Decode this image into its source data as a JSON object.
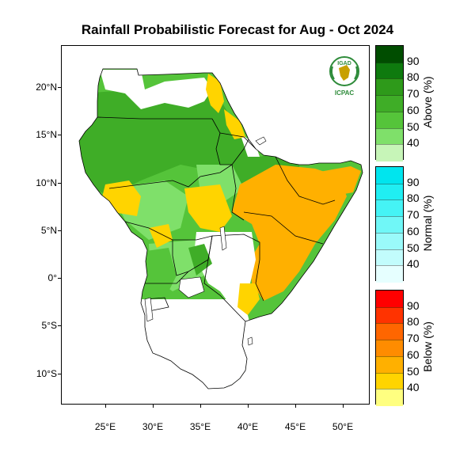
{
  "title": "Rainfall Probabilistic Forecast for Aug - Oct 2024",
  "logo": {
    "top_text": "IGAD",
    "bottom_text": "ICPAC"
  },
  "y_ticks": [
    {
      "label": "20°N",
      "lat": 20
    },
    {
      "label": "15°N",
      "lat": 15
    },
    {
      "label": "10°N",
      "lat": 10
    },
    {
      "label": "5°N",
      "lat": 5
    },
    {
      "label": "0°",
      "lat": 0
    },
    {
      "label": "5°S",
      "lat": -5
    },
    {
      "label": "10°S",
      "lat": -10
    }
  ],
  "x_ticks": [
    {
      "label": "25°E",
      "lon": 25
    },
    {
      "label": "30°E",
      "lon": 30
    },
    {
      "label": "35°E",
      "lon": 35
    },
    {
      "label": "40°E",
      "lon": 40
    },
    {
      "label": "45°E",
      "lon": 45
    },
    {
      "label": "50°E",
      "lon": 50
    }
  ],
  "colorbars": [
    {
      "title": "Above (%)",
      "labels": [
        "90",
        "80",
        "70",
        "60",
        "50",
        "40"
      ],
      "colors": [
        "#004d00",
        "#0e7a0e",
        "#2e9a1a",
        "#3fad27",
        "#55c43a",
        "#7fe06a",
        "#c7f5b8"
      ]
    },
    {
      "title": "Normal (%)",
      "labels": [
        "90",
        "80",
        "70",
        "60",
        "50",
        "40"
      ],
      "colors": [
        "#00e5ee",
        "#20eef2",
        "#45f3f5",
        "#70f7f7",
        "#9afafa",
        "#c2fcfc",
        "#e6ffff"
      ]
    },
    {
      "title": "Below (%)",
      "labels": [
        "90",
        "80",
        "70",
        "60",
        "50",
        "40"
      ],
      "colors": [
        "#ff0000",
        "#ff3300",
        "#ff6600",
        "#ff8c00",
        "#ffb000",
        "#ffd400",
        "#ffff80"
      ]
    }
  ]
}
